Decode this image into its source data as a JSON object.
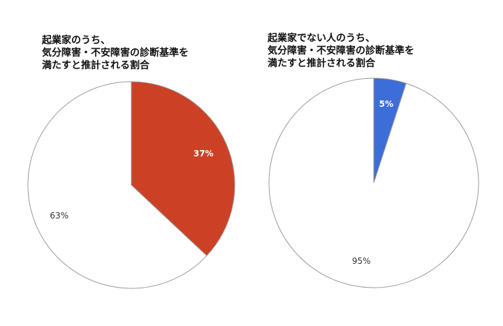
{
  "chart_data": [
    {
      "type": "pie",
      "title": [
        "起業家のうち、",
        "気分障害・不安障害の診断基準を",
        "満たすと推計される割合"
      ],
      "values": [
        37,
        63
      ],
      "value_labels": [
        "37%",
        "63%"
      ],
      "colors": [
        "#cc4125",
        "#ffffff"
      ]
    },
    {
      "type": "pie",
      "title": [
        "起業家でない人のうち、",
        "気分障害・不安障害の診断基準を",
        "満たすと推計される割合"
      ],
      "values": [
        5,
        95
      ],
      "value_labels": [
        "5%",
        "95%"
      ],
      "colors": [
        "#3c6dd8",
        "#ffffff"
      ]
    }
  ]
}
